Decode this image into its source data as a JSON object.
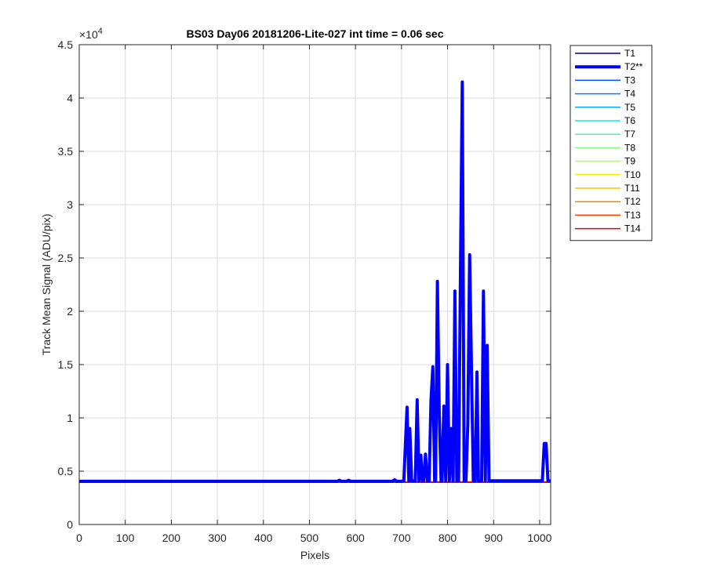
{
  "chart_data": {
    "type": "line",
    "title": "BS03 Day06 20181206-Lite-027 int time = 0.06 sec",
    "xlabel": "Pixels",
    "ylabel": "Track Mean Signal (ADU/pix)",
    "xlim": [
      0,
      1024
    ],
    "ylim": [
      0,
      45000
    ],
    "x_ticks": [
      0,
      100,
      200,
      300,
      400,
      500,
      600,
      700,
      800,
      900,
      1000
    ],
    "y_ticks": [
      0,
      5000,
      10000,
      15000,
      20000,
      25000,
      30000,
      35000,
      40000,
      45000
    ],
    "y_tick_labels": [
      "0",
      "0.5",
      "1",
      "1.5",
      "2",
      "2.5",
      "3",
      "3.5",
      "4",
      "4.5"
    ],
    "y_exponent_base": "×10",
    "y_exponent_power": "4",
    "grid": true,
    "legend_position": "outside-right",
    "series": [
      {
        "name": "T1",
        "color": "#00008f",
        "baseline": 4000
      },
      {
        "name": "T2**",
        "color": "#0000ff",
        "baseline": 4050,
        "bold": true,
        "x": [
          0,
          560,
          565,
          570,
          580,
          585,
          590,
          680,
          685,
          690,
          700,
          705,
          712,
          716,
          718,
          722,
          726,
          730,
          734,
          738,
          742,
          745,
          748,
          752,
          756,
          760,
          764,
          768,
          772,
          774,
          778,
          782,
          786,
          788,
          792,
          796,
          800,
          804,
          808,
          812,
          816,
          820,
          824,
          828,
          832,
          836,
          840,
          844,
          848,
          852,
          856,
          860,
          864,
          867,
          870,
          874,
          878,
          882,
          886,
          890,
          893,
          896,
          900,
          904,
          908,
          912,
          916,
          920,
          924,
          928,
          932,
          936,
          940,
          944,
          948,
          952,
          955,
          958,
          962,
          1000,
          1006,
          1010,
          1014,
          1018,
          1024
        ],
        "y": [
          4050,
          4050,
          4150,
          4050,
          4050,
          4150,
          4050,
          4050,
          4200,
          4050,
          4050,
          4100,
          11000,
          4100,
          9000,
          4100,
          4100,
          4100,
          11700,
          4100,
          6500,
          4100,
          4100,
          6600,
          4100,
          4100,
          11600,
          14800,
          4100,
          4100,
          22800,
          10200,
          4100,
          4100,
          11100,
          4100,
          15000,
          4100,
          9000,
          4100,
          21900,
          4100,
          4100,
          23700,
          41500,
          4100,
          4100,
          9500,
          25300,
          14300,
          4100,
          4100,
          14300,
          4100,
          4100,
          4100,
          21900,
          4100,
          16800,
          4100,
          4100,
          4100,
          4100,
          4100,
          4100,
          4100,
          4100,
          4100,
          4100,
          4100,
          4100,
          4100,
          4100,
          4100,
          4100,
          4100,
          4100,
          4100,
          4100,
          4100,
          4100,
          7600,
          7600,
          4100,
          4100
        ]
      },
      {
        "name": "T3",
        "color": "#0050ff",
        "baseline": 4000
      },
      {
        "name": "T4",
        "color": "#0080ff",
        "baseline": 4000
      },
      {
        "name": "T5",
        "color": "#00b0ff",
        "baseline": 4000
      },
      {
        "name": "T6",
        "color": "#10e8f0",
        "baseline": 4000
      },
      {
        "name": "T7",
        "color": "#50f0c0",
        "baseline": 4000
      },
      {
        "name": "T8",
        "color": "#80ff80",
        "baseline": 4000
      },
      {
        "name": "T9",
        "color": "#b0ff40",
        "baseline": 4000
      },
      {
        "name": "T10",
        "color": "#f0f000",
        "baseline": 4000
      },
      {
        "name": "T11",
        "color": "#ffc000",
        "baseline": 4000
      },
      {
        "name": "T12",
        "color": "#ff8000",
        "baseline": 4000
      },
      {
        "name": "T13",
        "color": "#ff4000",
        "baseline": 4000
      },
      {
        "name": "T14",
        "color": "#e00000",
        "baseline": 3950
      }
    ]
  }
}
